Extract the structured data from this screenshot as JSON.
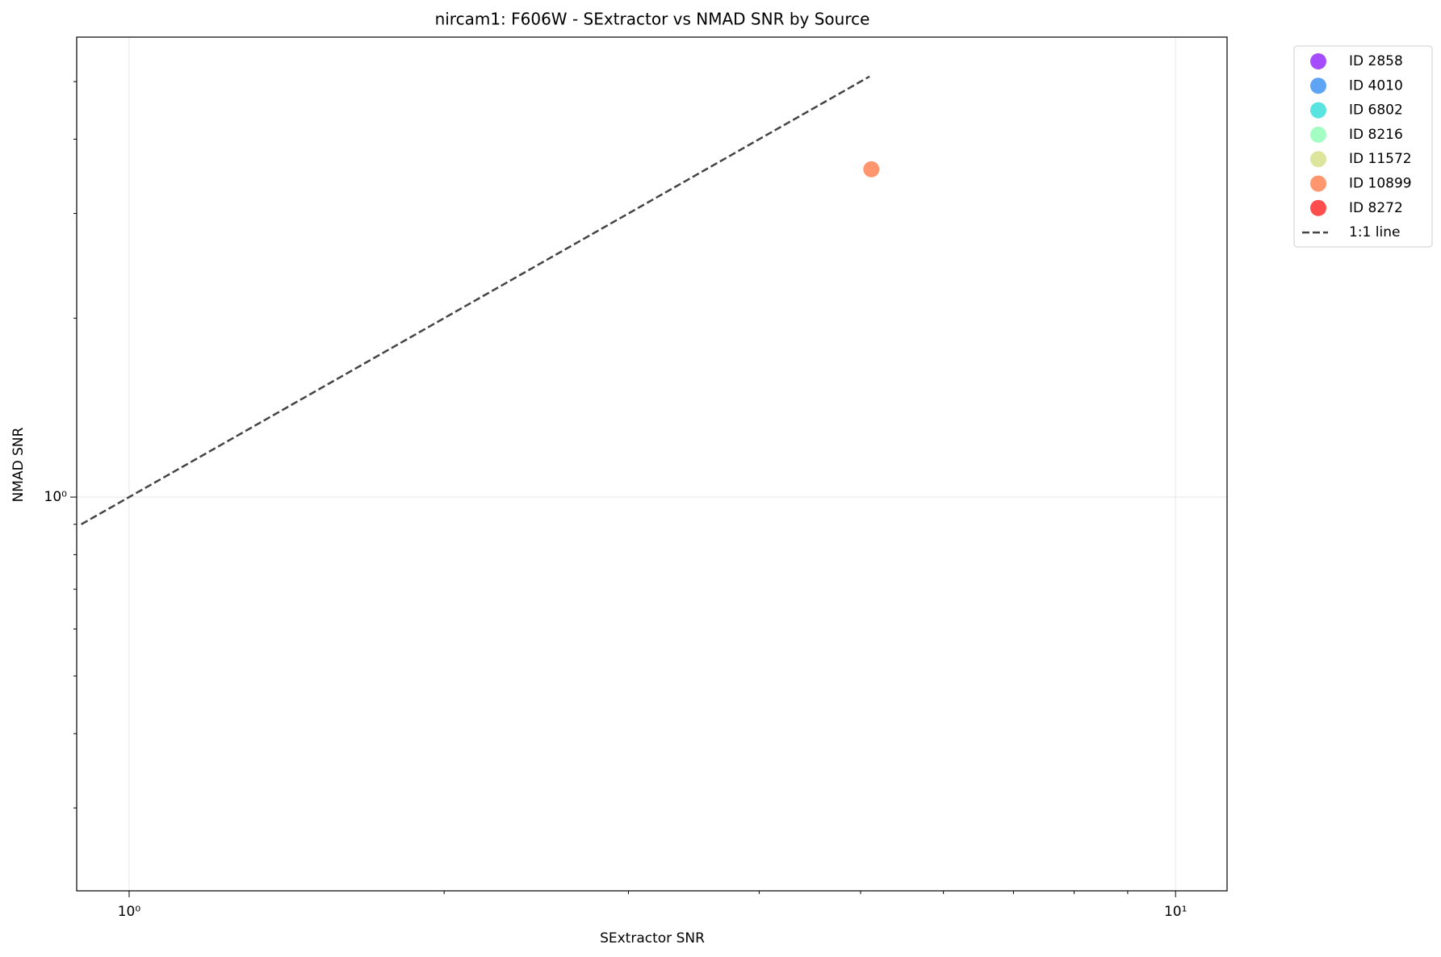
{
  "chart_data": {
    "type": "scatter",
    "title": "nircam1: F606W - SExtractor vs NMAD SNR by Source",
    "xlabel": "SExtractor SNR",
    "ylabel": "NMAD SNR",
    "xscale": "log",
    "yscale": "log",
    "xlim": [
      0.891,
      11.2
    ],
    "ylim": [
      0.2176,
      5.94
    ],
    "xticks": [
      {
        "value": 1,
        "label": "10⁰"
      },
      {
        "value": 10,
        "label": "10¹"
      }
    ],
    "yticks": [
      {
        "value": 1,
        "label": "10⁰"
      }
    ],
    "xminorticks": [
      2,
      3,
      4,
      5,
      6,
      7,
      8,
      9
    ],
    "yminorticks": [
      0.3,
      0.4,
      0.5,
      0.6,
      0.7,
      0.8,
      0.9,
      2,
      3,
      4,
      5
    ],
    "grid": true,
    "legend": "outside-upper-right",
    "series": [
      {
        "name": "ID 2858",
        "color": "#8000ff",
        "x": [],
        "values": []
      },
      {
        "name": "ID 4010",
        "color": "#1a7ef0",
        "x": [],
        "values": []
      },
      {
        "name": "ID 6802",
        "color": "#14d8d4",
        "x": [],
        "values": []
      },
      {
        "name": "ID 8216",
        "color": "#7dfca9",
        "x": [],
        "values": []
      },
      {
        "name": "ID 11572",
        "color": "#cfd970",
        "x": [],
        "values": []
      },
      {
        "name": "ID 10899",
        "color": "#ff6a30",
        "x": [
          5.12
        ],
        "values": [
          3.56
        ]
      },
      {
        "name": "ID 8272",
        "color": "#ff0000",
        "x": [],
        "values": []
      },
      {
        "name": "1:1 line",
        "color": "#444444",
        "style": "dashed-line",
        "x": [
          0.9,
          5.1
        ],
        "values": [
          0.9,
          5.1
        ]
      }
    ]
  }
}
